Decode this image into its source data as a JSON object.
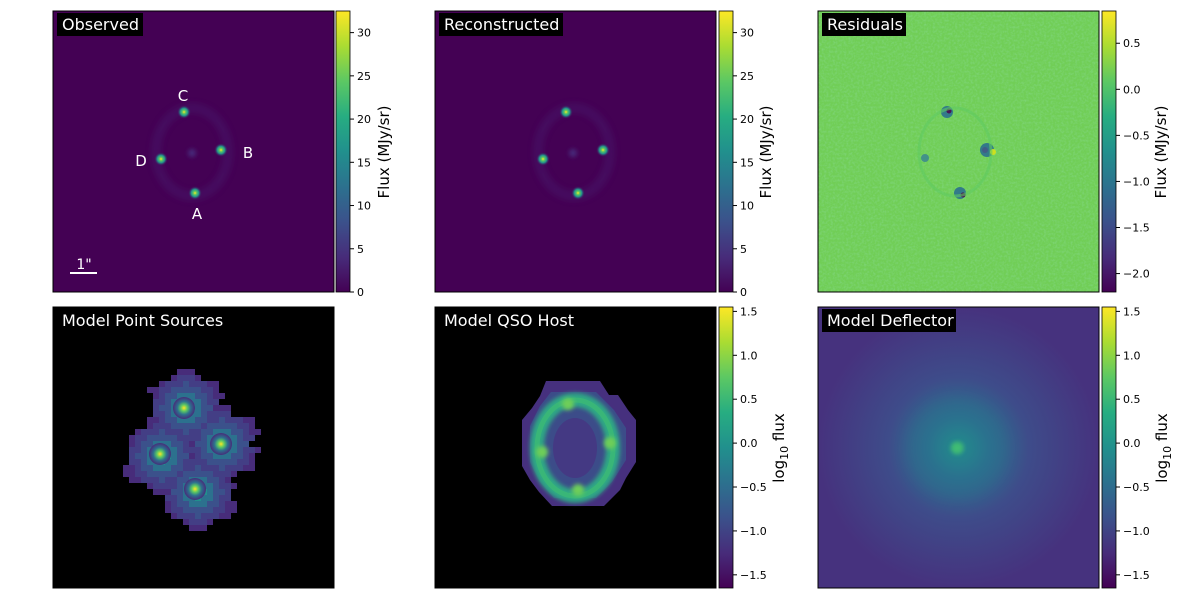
{
  "chart_data": [
    {
      "type": "heatmap",
      "title": "Observed",
      "colormap": "viridis",
      "colorbar": {
        "label": "Flux (MJy/sr)",
        "range": [
          0,
          32.5
        ],
        "ticks": [
          0,
          5,
          10,
          15,
          20,
          25,
          30
        ]
      },
      "annotations": [
        {
          "text": "C",
          "x": -0.25,
          "y": 1.22
        },
        {
          "text": "B",
          "x": 0.62,
          "y": 0.18
        },
        {
          "text": "D",
          "x": -0.96,
          "y": -0.08
        },
        {
          "text": "A",
          "x": 0.05,
          "y": -0.72
        }
      ],
      "scalebar": {
        "label": "1\"",
        "length_arcsec": 1
      },
      "sources": [
        {
          "name": "C",
          "x": -0.22,
          "y": 0.74,
          "peak": 32
        },
        {
          "name": "B",
          "x": 0.62,
          "y": 0.21,
          "peak": 28
        },
        {
          "name": "D",
          "x": -0.66,
          "y": 0.13,
          "peak": 26
        },
        {
          "name": "A",
          "x": 0.13,
          "y": -0.39,
          "peak": 30
        }
      ]
    },
    {
      "type": "heatmap",
      "title": "Reconstructed",
      "colormap": "viridis",
      "colorbar": {
        "label": "Flux (MJy/sr)",
        "range": [
          0,
          32.5
        ],
        "ticks": [
          0,
          5,
          10,
          15,
          20,
          25,
          30
        ]
      }
    },
    {
      "type": "heatmap",
      "title": "Residuals",
      "colormap": "viridis",
      "colorbar": {
        "label": "Flux (MJy/sr)",
        "range": [
          -2.2,
          0.85
        ],
        "ticks": [
          -2.0,
          -1.5,
          -1.0,
          -0.5,
          0.0,
          0.5
        ]
      }
    },
    {
      "type": "heatmap",
      "title": "Model Point Sources",
      "colormap": "viridis",
      "background": "#000000",
      "colorbar": null
    },
    {
      "type": "heatmap",
      "title": "Model QSO Host",
      "colormap": "viridis",
      "background": "#000000",
      "colorbar": {
        "label_prefix": "log",
        "label_sub": "10",
        "label_suffix": " flux",
        "range": [
          -1.65,
          1.55
        ],
        "ticks": [
          -1.5,
          -1.0,
          -0.5,
          0.0,
          0.5,
          1.0,
          1.5
        ]
      }
    },
    {
      "type": "heatmap",
      "title": "Model Deflector",
      "colormap": "viridis",
      "colorbar": {
        "label_prefix": "log",
        "label_sub": "10",
        "label_suffix": " flux",
        "range": [
          -1.65,
          1.55
        ],
        "ticks": [
          -1.5,
          -1.0,
          -0.5,
          0.0,
          0.5,
          1.0,
          1.5
        ]
      }
    }
  ]
}
